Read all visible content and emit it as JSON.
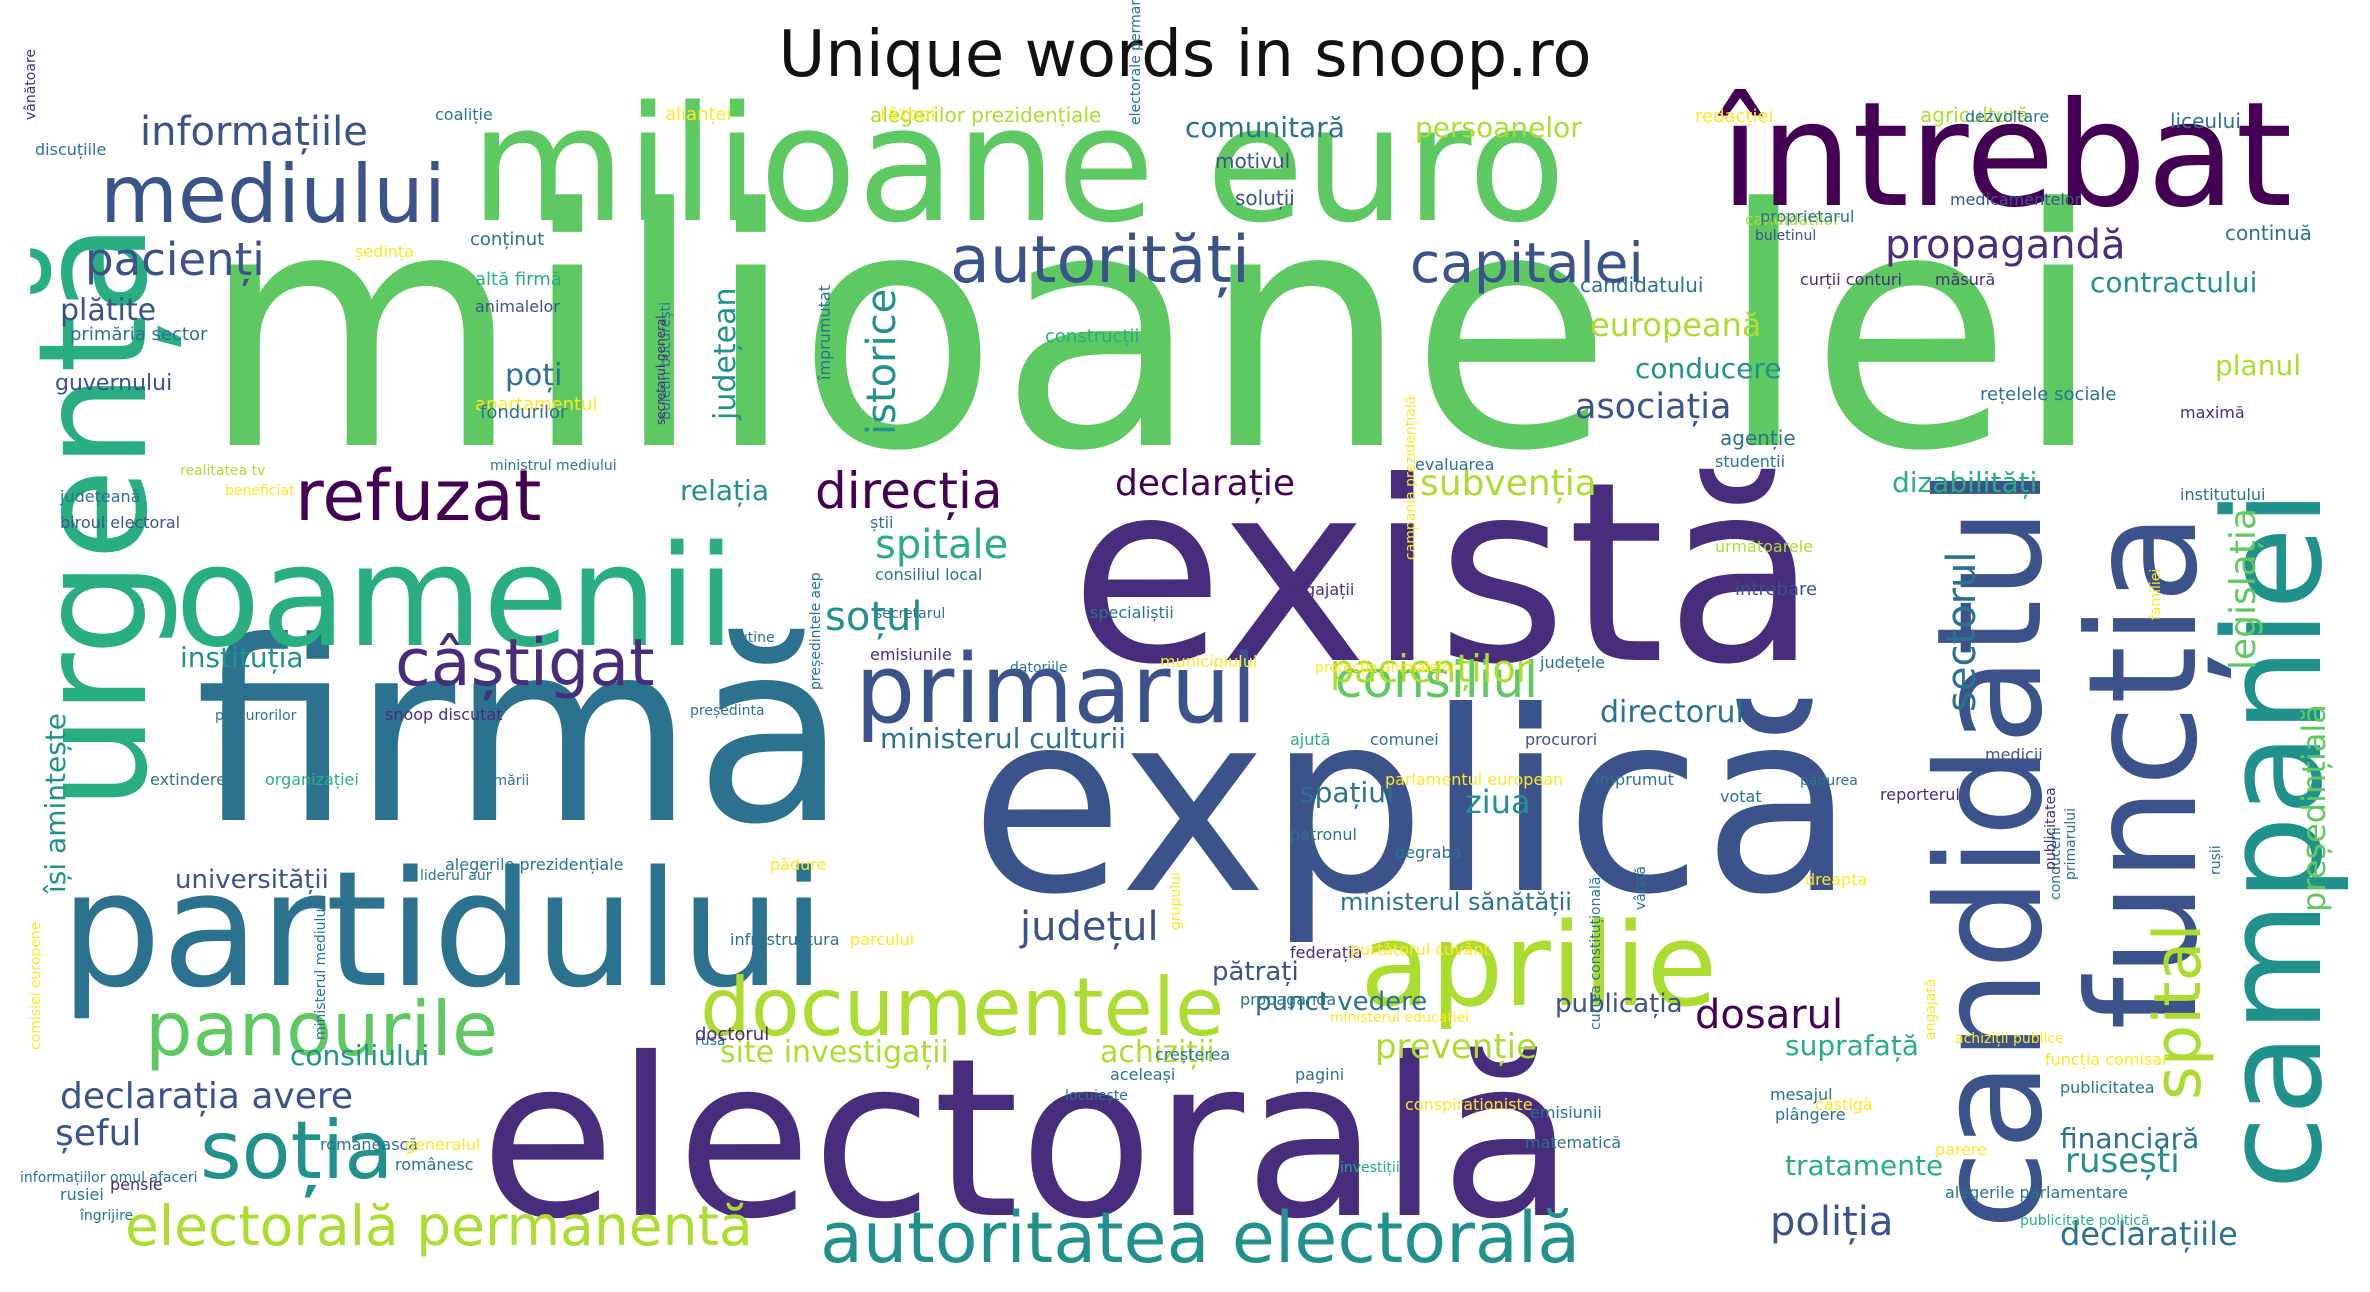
{
  "title": "Unique words in snoop.ro",
  "palette": [
    "#440154",
    "#472d7b",
    "#3b528b",
    "#2c728e",
    "#21918c",
    "#28ae80",
    "#5ec962",
    "#addc30",
    "#fde725"
  ],
  "words": [
    {
      "text": "milioane lei",
      "color": "#5ec962"
    },
    {
      "text": "milioane euro",
      "color": "#5ec962"
    },
    {
      "text": "întrebat",
      "color": "#440154"
    },
    {
      "text": "există",
      "color": "#472d7b"
    },
    {
      "text": "firmă",
      "color": "#2c728e"
    },
    {
      "text": "explică",
      "color": "#3b528b"
    },
    {
      "text": "electorală",
      "color": "#472d7b"
    },
    {
      "text": "partidului",
      "color": "#2c728e"
    },
    {
      "text": "oamenii",
      "color": "#28ae80"
    },
    {
      "text": "urgență",
      "color": "#28ae80"
    },
    {
      "text": "candidatul",
      "color": "#3b528b"
    },
    {
      "text": "funcția",
      "color": "#3b528b"
    },
    {
      "text": "campaniei",
      "color": "#21918c"
    },
    {
      "text": "aprilie",
      "color": "#addc30"
    },
    {
      "text": "mediului",
      "color": "#3b528b"
    },
    {
      "text": "primarul",
      "color": "#3b528b"
    },
    {
      "text": "documentele",
      "color": "#addc30"
    },
    {
      "text": "autoritatea electorală",
      "color": "#21918c"
    },
    {
      "text": "panourile",
      "color": "#5ec962"
    },
    {
      "text": "soția",
      "color": "#21918c"
    },
    {
      "text": "refuzat",
      "color": "#440154"
    },
    {
      "text": "câștigat",
      "color": "#472d7b"
    },
    {
      "text": "autorități",
      "color": "#3b528b"
    },
    {
      "text": "capitalei",
      "color": "#3b528b"
    },
    {
      "text": "electorală permanentă",
      "color": "#addc30"
    },
    {
      "text": "informațiile",
      "color": "#3b528b"
    },
    {
      "text": "pacienți",
      "color": "#3b528b"
    },
    {
      "text": "direcția",
      "color": "#440154"
    },
    {
      "text": "consiliul",
      "color": "#5ec962"
    },
    {
      "text": "pacienților",
      "color": "#addc30"
    },
    {
      "text": "spital",
      "color": "#addc30"
    },
    {
      "text": "sectorul",
      "color": "#2c728e"
    },
    {
      "text": "propagandă",
      "color": "#472d7b"
    },
    {
      "text": "europeană",
      "color": "#addc30"
    },
    {
      "text": "asociația",
      "color": "#3b528b"
    },
    {
      "text": "declarație",
      "color": "#440154"
    },
    {
      "text": "subvenția",
      "color": "#addc30"
    },
    {
      "text": "dosarul",
      "color": "#440154"
    },
    {
      "text": "poliția",
      "color": "#3b528b"
    },
    {
      "text": "declarațiile",
      "color": "#2c728e"
    },
    {
      "text": "legislația",
      "color": "#5ec962"
    },
    {
      "text": "președințială",
      "color": "#5ec962"
    },
    {
      "text": "declarația avere",
      "color": "#3b528b"
    },
    {
      "text": "șeful",
      "color": "#3b528b"
    },
    {
      "text": "spitale",
      "color": "#28ae80"
    },
    {
      "text": "soțul",
      "color": "#21918c"
    },
    {
      "text": "județul",
      "color": "#3b528b"
    },
    {
      "text": "prevenție",
      "color": "#addc30"
    },
    {
      "text": "suprafață",
      "color": "#28ae80"
    },
    {
      "text": "istorice",
      "color": "#21918c"
    },
    {
      "text": "județean",
      "color": "#21918c"
    },
    {
      "text": "contractului",
      "color": "#21918c"
    },
    {
      "text": "comunitară",
      "color": "#2c728e"
    },
    {
      "text": "persoanelor",
      "color": "#addc30"
    },
    {
      "text": "conducere",
      "color": "#21918c"
    },
    {
      "text": "directorul",
      "color": "#2c728e"
    },
    {
      "text": "ministerul culturii",
      "color": "#2c728e"
    },
    {
      "text": "spațiul",
      "color": "#2c728e"
    },
    {
      "text": "instituția",
      "color": "#21918c"
    },
    {
      "text": "își amintește",
      "color": "#21918c"
    },
    {
      "text": "relația",
      "color": "#21918c"
    },
    {
      "text": "dizabilități",
      "color": "#28ae80"
    },
    {
      "text": "planul",
      "color": "#addc30"
    },
    {
      "text": "plătite",
      "color": "#3b528b"
    },
    {
      "text": "poți",
      "color": "#2c728e"
    },
    {
      "text": "guvernului",
      "color": "#3b528b"
    },
    {
      "text": "consiliului",
      "color": "#21918c"
    },
    {
      "text": "universității",
      "color": "#3b528b"
    },
    {
      "text": "site investigații",
      "color": "#addc30"
    },
    {
      "text": "achiziții",
      "color": "#addc30"
    },
    {
      "text": "ziua",
      "color": "#21918c"
    },
    {
      "text": "pătrați",
      "color": "#3b528b"
    },
    {
      "text": "punct vedere",
      "color": "#2c728e"
    },
    {
      "text": "publicația",
      "color": "#3b528b"
    },
    {
      "text": "ministerul sănătății",
      "color": "#2c728e"
    },
    {
      "text": "rusești",
      "color": "#21918c"
    },
    {
      "text": "financiară",
      "color": "#2c728e"
    },
    {
      "text": "tratamente",
      "color": "#28ae80"
    },
    {
      "text": "agenție",
      "color": "#2c728e"
    },
    {
      "text": "alegerilor prezidențiale",
      "color": "#addc30"
    },
    {
      "text": "candidatului",
      "color": "#2c728e"
    },
    {
      "text": "liceului",
      "color": "#2c728e"
    },
    {
      "text": "continuă",
      "color": "#2c728e"
    },
    {
      "text": "rețelele sociale",
      "color": "#2c728e"
    },
    {
      "text": "motivul",
      "color": "#3b528b"
    },
    {
      "text": "soluții",
      "color": "#3b528b"
    },
    {
      "text": "redacției",
      "color": "#fde725"
    },
    {
      "text": "agricultură",
      "color": "#addc30"
    },
    {
      "text": "alianței",
      "color": "#fde725"
    },
    {
      "text": "război",
      "color": "#fde725"
    },
    {
      "text": "discuțiile",
      "color": "#2c728e"
    },
    {
      "text": "coaliție",
      "color": "#2c728e"
    },
    {
      "text": "ședința",
      "color": "#fde725"
    },
    {
      "text": "conținut",
      "color": "#2c728e"
    },
    {
      "text": "primăria sector",
      "color": "#2c728e"
    },
    {
      "text": "altă firmă",
      "color": "#28ae80"
    },
    {
      "text": "animalelor",
      "color": "#3b528b"
    },
    {
      "text": "apartamentul",
      "color": "#fde725"
    },
    {
      "text": "fondurilor",
      "color": "#2c728e"
    },
    {
      "text": "construcții",
      "color": "#28ae80"
    },
    {
      "text": "împrumutat",
      "color": "#2c728e"
    },
    {
      "text": "dezvoltare",
      "color": "#2c728e"
    },
    {
      "text": "candidaților",
      "color": "#addc30"
    },
    {
      "text": "buletinul",
      "color": "#3b528b"
    },
    {
      "text": "proprietarul",
      "color": "#2c728e"
    },
    {
      "text": "medicamentelor",
      "color": "#3b528b"
    },
    {
      "text": "curții conturi",
      "color": "#472d7b"
    },
    {
      "text": "măsură",
      "color": "#472d7b"
    },
    {
      "text": "maximă",
      "color": "#472d7b"
    },
    {
      "text": "institutului",
      "color": "#2c728e"
    },
    {
      "text": "studenții",
      "color": "#2c728e"
    },
    {
      "text": "evaluarea",
      "color": "#2c728e"
    },
    {
      "text": "ministrul mediului",
      "color": "#2c728e"
    },
    {
      "text": "realitatea tv",
      "color": "#addc30"
    },
    {
      "text": "beneficiat",
      "color": "#fde725"
    },
    {
      "text": "județeană",
      "color": "#2c728e"
    },
    {
      "text": "biroul electoral",
      "color": "#3b528b"
    },
    {
      "text": "știi",
      "color": "#2c728e"
    },
    {
      "text": "consiliul local",
      "color": "#2c728e"
    },
    {
      "text": "secretarul",
      "color": "#2c728e"
    },
    {
      "text": "următoarele",
      "color": "#addc30"
    },
    {
      "text": "angajații",
      "color": "#472d7b"
    },
    {
      "text": "întrebare",
      "color": "#3b528b"
    },
    {
      "text": "specialiștii",
      "color": "#2c728e"
    },
    {
      "text": "emisiunile",
      "color": "#472d7b"
    },
    {
      "text": "municipiului",
      "color": "#fde725"
    },
    {
      "text": "județele",
      "color": "#2c728e"
    },
    {
      "text": "datoriile",
      "color": "#2c728e"
    },
    {
      "text": "protecția animalelor",
      "color": "#fde725"
    },
    {
      "text": "puține",
      "color": "#2c728e"
    },
    {
      "text": "președinta",
      "color": "#2c728e"
    },
    {
      "text": "snoop discutat",
      "color": "#472d7b"
    },
    {
      "text": "procurorilor",
      "color": "#2c728e"
    },
    {
      "text": "ajută",
      "color": "#28ae80"
    },
    {
      "text": "comunei",
      "color": "#2c728e"
    },
    {
      "text": "procurori",
      "color": "#3b528b"
    },
    {
      "text": "degrabă",
      "color": "#2c728e"
    },
    {
      "text": "dreapta",
      "color": "#fde725"
    },
    {
      "text": "medicii",
      "color": "#3b528b"
    },
    {
      "text": "extinderea",
      "color": "#2c728e"
    },
    {
      "text": "organizației",
      "color": "#28ae80"
    },
    {
      "text": "primării",
      "color": "#2c728e"
    },
    {
      "text": "împrumut",
      "color": "#2c728e"
    },
    {
      "text": "parlamentul european",
      "color": "#fde725"
    },
    {
      "text": "votat",
      "color": "#2c728e"
    },
    {
      "text": "patronul",
      "color": "#2c728e"
    },
    {
      "text": "pădurea",
      "color": "#2c728e"
    },
    {
      "text": "reporterul",
      "color": "#472d7b"
    },
    {
      "text": "alegerile prezidențiale",
      "color": "#2c728e"
    },
    {
      "text": "pădure",
      "color": "#fde725"
    },
    {
      "text": "liderul aur",
      "color": "#2c728e"
    },
    {
      "text": "federația",
      "color": "#472d7b"
    },
    {
      "text": "purtătorul cuvânt",
      "color": "#fde725"
    },
    {
      "text": "infrastructura",
      "color": "#2c728e"
    },
    {
      "text": "parcului",
      "color": "#fde725"
    },
    {
      "text": "rusă",
      "color": "#2c728e"
    },
    {
      "text": "doctorul",
      "color": "#472d7b"
    },
    {
      "text": "propaganda",
      "color": "#2c728e"
    },
    {
      "text": "aceleași",
      "color": "#2c728e"
    },
    {
      "text": "pagini",
      "color": "#2c728e"
    },
    {
      "text": "creșterea",
      "color": "#2c728e"
    },
    {
      "text": "locuiește",
      "color": "#2c728e"
    },
    {
      "text": "românească",
      "color": "#2c728e"
    },
    {
      "text": "generalul",
      "color": "#fde725"
    },
    {
      "text": "românesc",
      "color": "#2c728e"
    },
    {
      "text": "omul afaceri",
      "color": "#2c728e"
    },
    {
      "text": "pensie",
      "color": "#472d7b"
    },
    {
      "text": "rusiei",
      "color": "#2c728e"
    },
    {
      "text": "îngrijire",
      "color": "#2c728e"
    },
    {
      "text": "informațiilor",
      "color": "#2c728e"
    },
    {
      "text": "investiții",
      "color": "#28ae80"
    },
    {
      "text": "conspiraționiste",
      "color": "#fde725"
    },
    {
      "text": "matematică",
      "color": "#2c728e"
    },
    {
      "text": "emisiunii",
      "color": "#2c728e"
    },
    {
      "text": "plângere",
      "color": "#2c728e"
    },
    {
      "text": "mesajul",
      "color": "#2c728e"
    },
    {
      "text": "câștigă",
      "color": "#fde725"
    },
    {
      "text": "parere",
      "color": "#fde725"
    },
    {
      "text": "alegerile parlamentare",
      "color": "#2c728e"
    },
    {
      "text": "publicitate politică",
      "color": "#28ae80"
    },
    {
      "text": "publicitatea",
      "color": "#2c728e"
    },
    {
      "text": "funcția comisar",
      "color": "#fde725"
    },
    {
      "text": "achiziții publice",
      "color": "#fde725"
    },
    {
      "text": "ministerul educației",
      "color": "#fde725"
    },
    {
      "text": "vânătoare",
      "color": "#472d7b"
    },
    {
      "text": "comisiei europene",
      "color": "#fde725"
    },
    {
      "text": "angajată",
      "color": "#fde725"
    },
    {
      "text": "electorale permanente",
      "color": "#2c728e"
    },
    {
      "text": "buletin bucurești",
      "color": "#2c728e"
    },
    {
      "text": "secretarul general",
      "color": "#472d7b"
    },
    {
      "text": "ministerul mediului",
      "color": "#2c728e"
    },
    {
      "text": "campania prezidențială",
      "color": "#fde725"
    },
    {
      "text": "președintele aep",
      "color": "#2c728e"
    },
    {
      "text": "curtea constituțională",
      "color": "#2c728e"
    },
    {
      "text": "grupului",
      "color": "#fde725"
    },
    {
      "text": "vârstă",
      "color": "#2c728e"
    },
    {
      "text": "conducerii",
      "color": "#2c728e"
    },
    {
      "text": "primarului",
      "color": "#2c728e"
    },
    {
      "text": "publicitatea",
      "color": "#472d7b"
    },
    {
      "text": "rușii",
      "color": "#2c728e"
    },
    {
      "text": "familiei",
      "color": "#fde725"
    }
  ]
}
